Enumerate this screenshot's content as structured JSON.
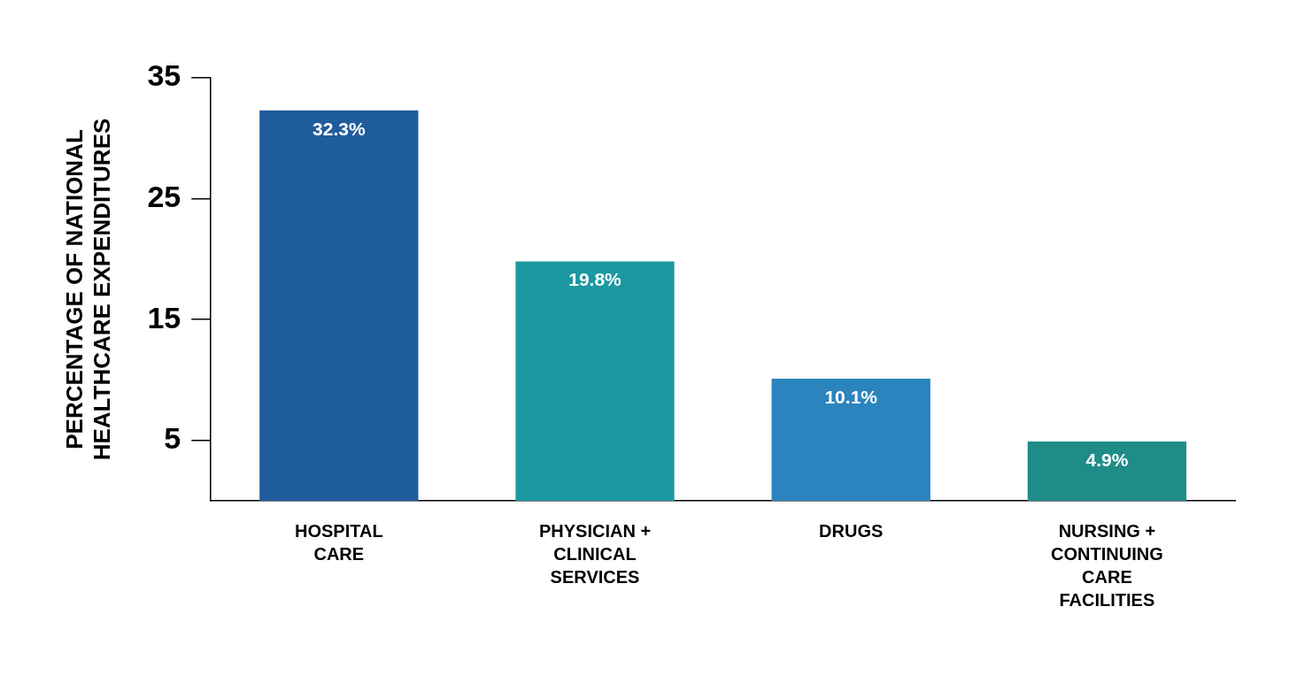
{
  "chart_data": {
    "type": "bar",
    "y_label": "PERCENTAGE OF NATIONAL HEALTHCARE EXPENDITURES",
    "categories": [
      "HOSPITAL CARE",
      "PHYSICIAN + CLINICAL SERVICES",
      "DRUGS",
      "NURSING + CONTINUING CARE FACILITIES"
    ],
    "values": [
      32.3,
      19.8,
      10.1,
      4.9
    ],
    "value_labels": [
      "32.3%",
      "19.8%",
      "10.1%",
      "4.9%"
    ],
    "colors": [
      "#1f5c9c",
      "#1b98a0",
      "#2b84bd",
      "#1f8c88"
    ],
    "ylim": [
      0,
      35
    ],
    "yticks": [
      5,
      15,
      25,
      35
    ],
    "grid": false,
    "data_labels": true
  }
}
